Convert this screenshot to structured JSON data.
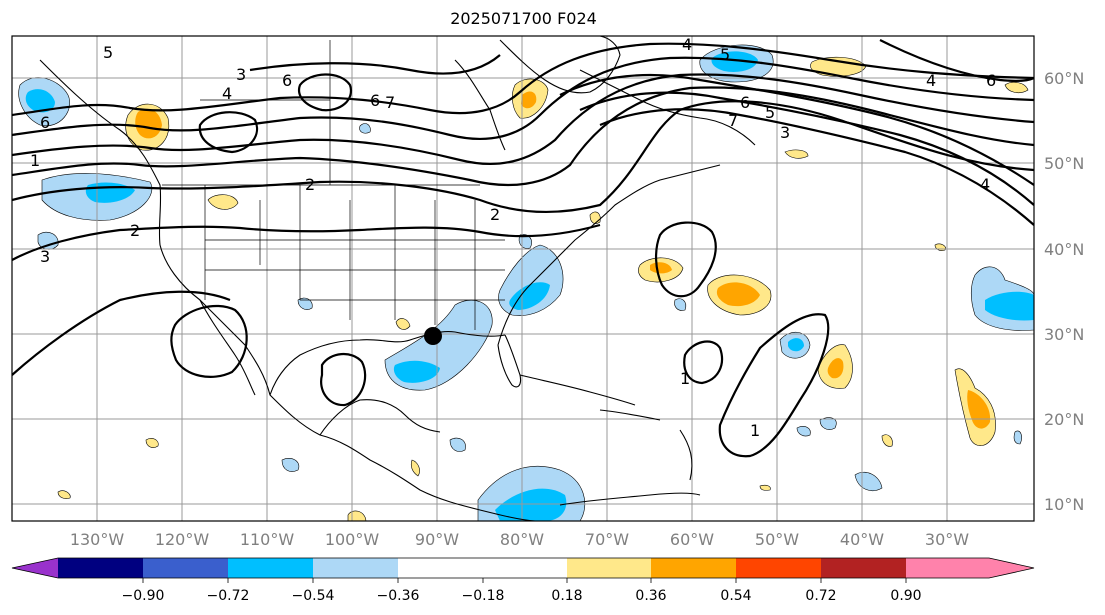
{
  "title": "2025071700 F024",
  "lat_labels": [
    "60°N",
    "50°N",
    "40°N",
    "30°N",
    "20°N",
    "10°N"
  ],
  "lon_labels": [
    "130°W",
    "120°W",
    "110°W",
    "100°W",
    "90°W",
    "80°W",
    "70°W",
    "60°W",
    "50°W",
    "40°W",
    "30°W"
  ],
  "colorbar": {
    "ticks": [
      "−0.90",
      "−0.72",
      "−0.54",
      "−0.36",
      "−0.18",
      "0.18",
      "0.36",
      "0.54",
      "0.72",
      "0.90"
    ],
    "colors": [
      "#9932cc",
      "#000080",
      "#3a5fcd",
      "#00bfff",
      "#add8f6",
      "#ffffff",
      "#ffe88a",
      "#ffa500",
      "#ff4500",
      "#b22222",
      "#ff82ab"
    ]
  },
  "contour_labels": [
    "2",
    "2",
    "3",
    "3",
    "4",
    "4",
    "5",
    "5",
    "6",
    "6",
    "6",
    "7",
    "1",
    "1",
    "2",
    "3",
    "4",
    "5",
    "6",
    "7",
    "4",
    "6",
    "1"
  ],
  "fill_colors": {
    "light_blue": "#add8f6",
    "blue": "#00bfff",
    "yellow": "#ffe88a",
    "orange": "#ffa500"
  }
}
